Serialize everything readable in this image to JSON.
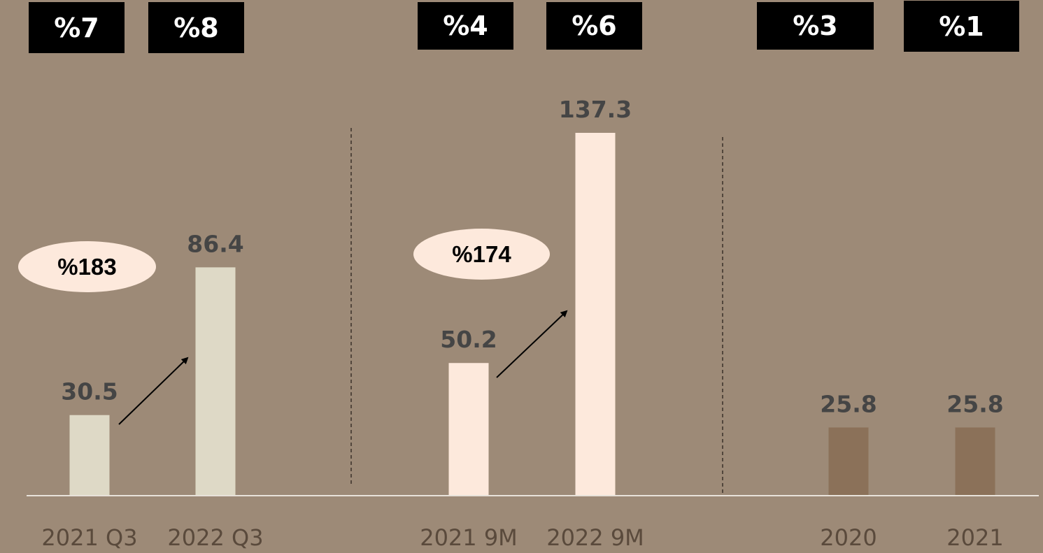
{
  "chart_data": {
    "type": "bar",
    "categories": [
      "2021 Q3",
      "2022 Q3",
      "2021 9M",
      "2022 9M",
      "2020",
      "2021"
    ],
    "values": [
      30.5,
      86.4,
      50.2,
      137.3,
      25.8,
      25.8
    ],
    "value_labels": [
      "30.5",
      "86.4",
      "50.2",
      "137.3",
      "25.8",
      "25.8"
    ],
    "bar_colors": [
      "#ded9c6",
      "#ded9c6",
      "#fde9dc",
      "#fde9dc",
      "#8b7159",
      "#8b7159"
    ],
    "groups": [
      [
        "2021 Q3",
        "2022 Q3"
      ],
      [
        "2021 9M",
        "2022 9M"
      ],
      [
        "2020",
        "2021"
      ]
    ],
    "badges": [
      "%7",
      "%8",
      "%4",
      "%6",
      "%3",
      "%1"
    ],
    "growth_labels": [
      "%183",
      "%174"
    ],
    "ylim": [
      0,
      137.3
    ],
    "grid": false,
    "title": "",
    "xlabel": "",
    "ylabel": ""
  },
  "colors": {
    "background": "#9d8a77",
    "badge_bg": "#000000",
    "badge_text": "#ffffff",
    "value_label": "#454545",
    "axis_label": "#5a4a3c",
    "baseline": "#e8e2da",
    "divider": "#3a3028",
    "ellipse": "#fde9dc"
  }
}
